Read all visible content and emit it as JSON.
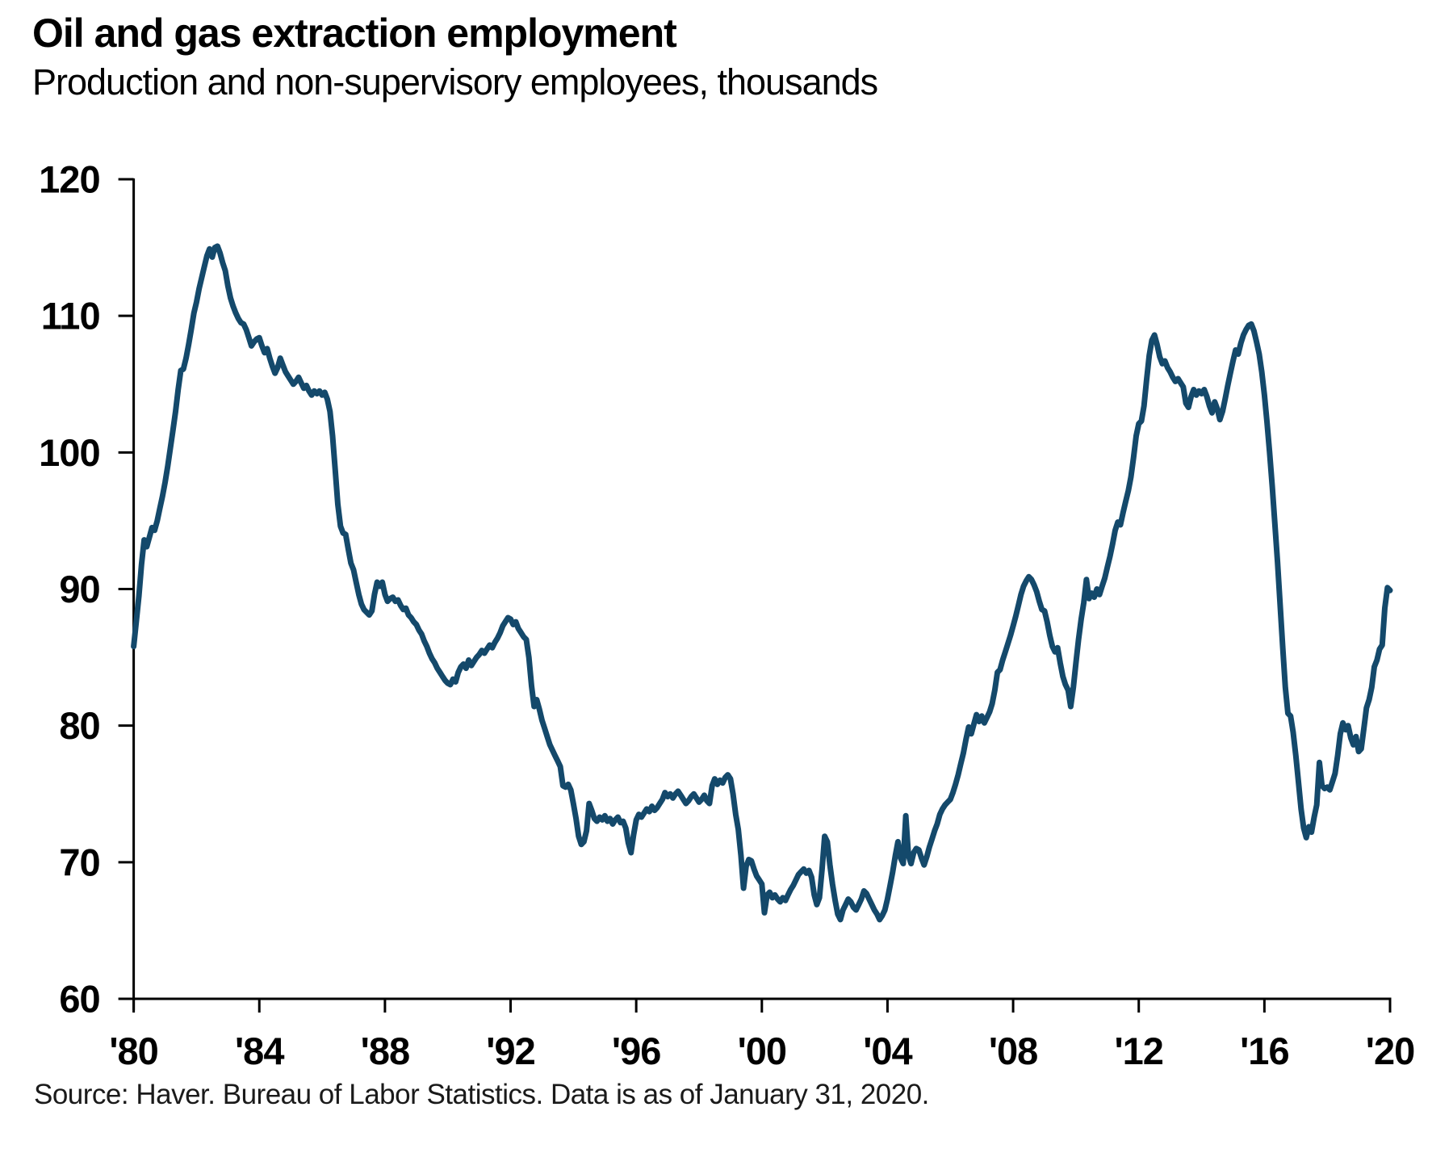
{
  "header": {
    "title": "Oil and gas extraction employment",
    "subtitle": "Production and non-supervisory employees, thousands"
  },
  "source": "Source: Haver. Bureau of Labor Statistics. Data is as of January 31, 2020.",
  "chart_data": {
    "type": "line",
    "title": "Oil and gas extraction employment",
    "subtitle": "Production and non-supervisory employees, thousands",
    "xlabel": "",
    "ylabel": "Production and non-supervisory employees, thousands",
    "x_range": [
      1980,
      2020
    ],
    "ylim": [
      60,
      120
    ],
    "grid": false,
    "legend": "none",
    "line_color": "#14496B",
    "axis_color": "#000000",
    "y_ticks": [
      60,
      70,
      80,
      90,
      100,
      110,
      120
    ],
    "x_ticks": [
      {
        "year": 1980,
        "label": "'80"
      },
      {
        "year": 1984,
        "label": "'84"
      },
      {
        "year": 1988,
        "label": "'88"
      },
      {
        "year": 1992,
        "label": "'92"
      },
      {
        "year": 1996,
        "label": "'96"
      },
      {
        "year": 2000,
        "label": "'00"
      },
      {
        "year": 2004,
        "label": "'04"
      },
      {
        "year": 2008,
        "label": "'08"
      },
      {
        "year": 2012,
        "label": "'12"
      },
      {
        "year": 2016,
        "label": "'16"
      },
      {
        "year": 2020,
        "label": "'20"
      }
    ],
    "series": [
      {
        "name": "Production and non-supervisory employees, thousands",
        "frequency": "monthly",
        "start": "1980-01",
        "end": "2020-01",
        "values": [
          85.8,
          87.6,
          89.5,
          91.8,
          93.6,
          93.1,
          93.8,
          94.5,
          94.3,
          95.0,
          95.9,
          96.8,
          97.8,
          99.0,
          100.3,
          101.6,
          103.0,
          104.6,
          106.0,
          106.1,
          106.9,
          107.9,
          109.0,
          110.2,
          111.0,
          112.0,
          112.8,
          113.6,
          114.4,
          114.9,
          114.3,
          115.0,
          115.1,
          114.6,
          113.9,
          113.3,
          112.2,
          111.3,
          110.7,
          110.2,
          109.8,
          109.5,
          109.4,
          109.0,
          108.4,
          107.8,
          108.1,
          108.3,
          108.4,
          107.8,
          107.3,
          107.6,
          106.9,
          106.3,
          105.8,
          106.2,
          106.9,
          106.4,
          105.9,
          105.6,
          105.3,
          105.0,
          105.2,
          105.5,
          105.1,
          104.7,
          104.9,
          104.5,
          104.2,
          104.5,
          104.3,
          104.5,
          104.2,
          104.4,
          103.9,
          103.0,
          101.2,
          98.7,
          96.2,
          94.6,
          94.1,
          94.0,
          92.9,
          91.9,
          91.4,
          90.5,
          89.6,
          88.9,
          88.5,
          88.3,
          88.1,
          88.4,
          89.6,
          90.5,
          90.2,
          90.5,
          89.6,
          89.1,
          89.3,
          89.4,
          89.1,
          89.2,
          88.8,
          88.5,
          88.6,
          88.1,
          87.9,
          87.6,
          87.4,
          87.0,
          86.7,
          86.2,
          85.8,
          85.3,
          84.9,
          84.6,
          84.2,
          83.9,
          83.6,
          83.3,
          83.1,
          83.0,
          83.4,
          83.2,
          83.9,
          84.3,
          84.5,
          84.2,
          84.8,
          84.4,
          84.7,
          85.0,
          85.2,
          85.5,
          85.3,
          85.6,
          85.9,
          85.7,
          86.1,
          86.4,
          86.8,
          87.3,
          87.6,
          87.9,
          87.8,
          87.4,
          87.6,
          87.1,
          86.8,
          86.5,
          86.3,
          85.0,
          82.9,
          81.4,
          81.9,
          81.2,
          80.4,
          79.8,
          79.2,
          78.6,
          78.2,
          77.8,
          77.4,
          77.0,
          75.6,
          75.5,
          75.7,
          75.3,
          74.3,
          73.2,
          71.9,
          71.3,
          71.5,
          72.3,
          74.3,
          73.8,
          73.2,
          73.0,
          73.3,
          73.1,
          73.4,
          73.0,
          73.2,
          72.8,
          73.1,
          73.3,
          72.9,
          73.0,
          72.5,
          71.4,
          70.7,
          72.0,
          73.1,
          73.5,
          73.3,
          73.6,
          73.9,
          73.7,
          74.1,
          73.8,
          74.0,
          74.3,
          74.6,
          75.1,
          74.8,
          75.0,
          74.7,
          75.0,
          75.2,
          74.9,
          74.6,
          74.3,
          74.5,
          74.8,
          75.0,
          74.7,
          74.4,
          74.6,
          74.9,
          74.5,
          74.3,
          75.6,
          76.1,
          75.7,
          76.0,
          75.8,
          76.2,
          76.4,
          76.1,
          75.0,
          73.5,
          72.4,
          70.5,
          68.1,
          69.7,
          70.2,
          70.1,
          69.5,
          69.0,
          68.7,
          68.4,
          66.3,
          67.6,
          67.8,
          67.4,
          67.6,
          67.3,
          67.1,
          67.4,
          67.2,
          67.6,
          68.0,
          68.3,
          68.7,
          69.1,
          69.3,
          69.5,
          69.2,
          69.4,
          68.9,
          67.6,
          66.9,
          67.4,
          69.5,
          71.9,
          71.5,
          69.8,
          68.4,
          67.2,
          66.2,
          65.8,
          66.5,
          66.9,
          67.3,
          67.1,
          66.7,
          66.5,
          66.9,
          67.3,
          67.9,
          67.7,
          67.3,
          66.9,
          66.5,
          66.2,
          65.8,
          66.1,
          66.5,
          67.3,
          68.3,
          69.3,
          70.5,
          71.5,
          70.3,
          69.9,
          73.4,
          70.5,
          69.9,
          70.7,
          71.0,
          70.9,
          70.3,
          69.8,
          70.4,
          71.1,
          71.7,
          72.3,
          72.8,
          73.5,
          73.9,
          74.2,
          74.4,
          74.6,
          75.1,
          75.7,
          76.4,
          77.2,
          78.0,
          79.0,
          79.9,
          79.4,
          80.1,
          80.8,
          80.3,
          80.7,
          80.2,
          80.6,
          81.0,
          81.6,
          82.6,
          83.9,
          84.1,
          84.8,
          85.4,
          86.0,
          86.6,
          87.3,
          88.0,
          88.8,
          89.6,
          90.2,
          90.6,
          90.9,
          90.7,
          90.3,
          89.8,
          89.1,
          88.5,
          88.4,
          87.6,
          86.6,
          85.8,
          85.4,
          85.7,
          84.6,
          83.6,
          83.0,
          82.6,
          81.4,
          82.8,
          84.6,
          86.3,
          87.8,
          89.0,
          90.7,
          89.3,
          89.7,
          89.4,
          90.0,
          89.6,
          90.2,
          90.8,
          91.6,
          92.4,
          93.3,
          94.3,
          94.9,
          94.7,
          95.6,
          96.4,
          97.2,
          98.2,
          99.6,
          101.2,
          102.1,
          102.3,
          103.4,
          105.3,
          107.1,
          108.2,
          108.6,
          107.9,
          107.0,
          106.5,
          106.7,
          106.2,
          105.9,
          105.5,
          105.2,
          105.4,
          105.1,
          104.8,
          103.6,
          103.3,
          104.1,
          104.6,
          104.2,
          104.5,
          104.3,
          104.6,
          104.1,
          103.4,
          102.9,
          103.7,
          103.2,
          102.4,
          103.0,
          103.9,
          104.9,
          105.8,
          106.7,
          107.5,
          107.2,
          108.0,
          108.6,
          109.0,
          109.3,
          109.4,
          108.9,
          108.1,
          107.2,
          105.9,
          104.2,
          102.2,
          100.0,
          97.5,
          94.8,
          92.0,
          88.9,
          85.7,
          82.8,
          80.9,
          80.7,
          79.5,
          77.8,
          75.9,
          73.9,
          72.5,
          71.8,
          72.6,
          72.2,
          73.3,
          74.2,
          77.3,
          75.6,
          75.4,
          75.5,
          75.3,
          75.9,
          76.5,
          77.8,
          79.4,
          80.2,
          79.7,
          80.0,
          79.1,
          78.6,
          79.2,
          78.1,
          78.3,
          79.8,
          81.3,
          81.9,
          82.8,
          84.3,
          84.8,
          85.6,
          85.9,
          88.6,
          90.1,
          89.9
        ]
      }
    ]
  }
}
